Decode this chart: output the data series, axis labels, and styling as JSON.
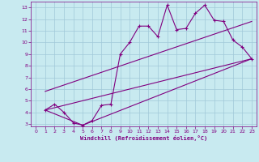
{
  "xlabel": "Windchill (Refroidissement éolien,°C)",
  "bg_color": "#c8eaf0",
  "line_color": "#800080",
  "grid_color": "#a0c8d8",
  "xlim": [
    -0.5,
    23.5
  ],
  "ylim": [
    2.8,
    13.5
  ],
  "xticks": [
    0,
    1,
    2,
    3,
    4,
    5,
    6,
    7,
    8,
    9,
    10,
    11,
    12,
    13,
    14,
    15,
    16,
    17,
    18,
    19,
    20,
    21,
    22,
    23
  ],
  "yticks": [
    3,
    4,
    5,
    6,
    7,
    8,
    9,
    10,
    11,
    12,
    13
  ],
  "data_x": [
    1,
    2,
    3,
    4,
    5,
    6,
    7,
    8,
    9,
    10,
    11,
    12,
    13,
    14,
    15,
    16,
    17,
    18,
    19,
    20,
    21,
    22,
    23
  ],
  "data_y": [
    4.2,
    4.7,
    4.0,
    3.1,
    2.9,
    3.3,
    4.6,
    4.7,
    9.0,
    10.0,
    11.4,
    11.4,
    10.5,
    13.2,
    11.1,
    11.2,
    12.5,
    13.2,
    11.9,
    11.8,
    10.2,
    9.6,
    8.6
  ],
  "upper_line_x": [
    1,
    23
  ],
  "upper_line_y": [
    5.8,
    11.8
  ],
  "lower_line_x": [
    1,
    23
  ],
  "lower_line_y": [
    4.2,
    8.6
  ],
  "bottom_line_x": [
    1,
    5,
    23
  ],
  "bottom_line_y": [
    4.2,
    2.9,
    8.6
  ]
}
